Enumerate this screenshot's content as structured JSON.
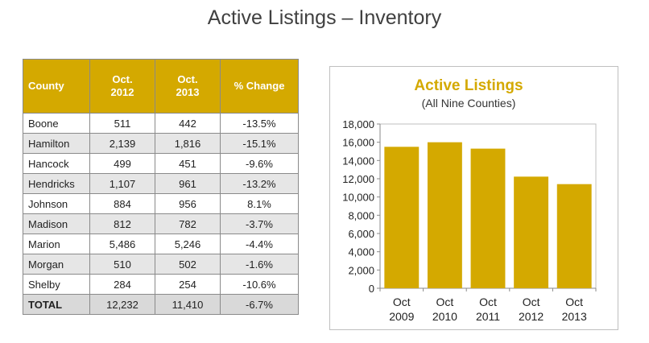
{
  "page": {
    "title": "Active Listings – Inventory"
  },
  "table": {
    "headers": {
      "county": "County",
      "col1_line1": "Oct.",
      "col1_line2": "2012",
      "col2_line1": "Oct.",
      "col2_line2": "2013",
      "change": "% Change"
    },
    "rows": [
      {
        "county": "Boone",
        "oct2012": "511",
        "oct2013": "442",
        "change": "-13.5%"
      },
      {
        "county": "Hamilton",
        "oct2012": "2,139",
        "oct2013": "1,816",
        "change": "-15.1%"
      },
      {
        "county": "Hancock",
        "oct2012": "499",
        "oct2013": "451",
        "change": "-9.6%"
      },
      {
        "county": "Hendricks",
        "oct2012": "1,107",
        "oct2013": "961",
        "change": "-13.2%"
      },
      {
        "county": "Johnson",
        "oct2012": "884",
        "oct2013": "956",
        "change": "8.1%"
      },
      {
        "county": "Madison",
        "oct2012": "812",
        "oct2013": "782",
        "change": "-3.7%"
      },
      {
        "county": "Marion",
        "oct2012": "5,486",
        "oct2013": "5,246",
        "change": "-4.4%"
      },
      {
        "county": "Morgan",
        "oct2012": "510",
        "oct2013": "502",
        "change": "-1.6%"
      },
      {
        "county": "Shelby",
        "oct2012": "284",
        "oct2013": "254",
        "change": "-10.6%"
      }
    ],
    "total": {
      "county": "TOTAL",
      "oct2012": "12,232",
      "oct2013": "11,410",
      "change": "-6.7%"
    },
    "colors": {
      "header_bg": "#d4a900",
      "alt_row_bg": "#e6e6e6"
    }
  },
  "chart_data": {
    "type": "bar",
    "title": "Active Listings",
    "subtitle": "(All Nine Counties)",
    "categories": [
      [
        "Oct",
        "2009"
      ],
      [
        "Oct",
        "2010"
      ],
      [
        "Oct",
        "2011"
      ],
      [
        "Oct",
        "2012"
      ],
      [
        "Oct",
        "2013"
      ]
    ],
    "values": [
      15500,
      16000,
      15300,
      12232,
      11410
    ],
    "ylim": [
      0,
      18000
    ],
    "yticks": [
      0,
      2000,
      4000,
      6000,
      8000,
      10000,
      12000,
      14000,
      16000,
      18000
    ],
    "ytick_labels": [
      "0",
      "2,000",
      "4,000",
      "6,000",
      "8,000",
      "10,000",
      "12,000",
      "14,000",
      "16,000",
      "18,000"
    ],
    "grid": false,
    "legend": "none",
    "colors": {
      "bar": "#d4a900",
      "title": "#d4a900"
    }
  }
}
